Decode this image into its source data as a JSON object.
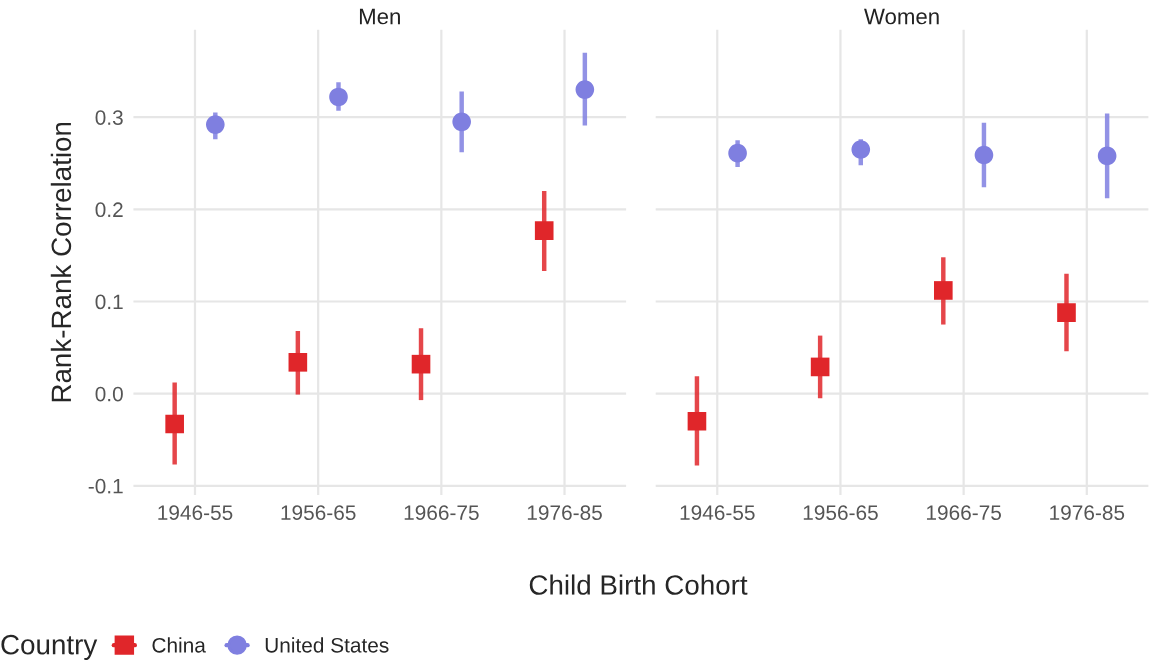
{
  "chart_data": [
    {
      "type": "scatter",
      "title": "Men",
      "ylabel": "Rank-Rank Correlation",
      "xlabel": "Child Birth Cohort",
      "legend_title": "Country",
      "legend": "bottom",
      "grid": true,
      "categories": [
        "1946-55",
        "1956-65",
        "1966-75",
        "1976-85"
      ],
      "ylim": [
        -0.11,
        0.395
      ],
      "yticks": [
        {
          "value": -0.1,
          "label": "-0.1"
        },
        {
          "value": 0.0,
          "label": "0.0"
        },
        0.1,
        0.2,
        0.3
      ],
      "series": [
        {
          "name": "China",
          "color": "#e0262a",
          "marker": "square",
          "values": [
            -0.033,
            0.034,
            0.032,
            0.177
          ],
          "errors": [
            [
              -0.077,
              0.012
            ],
            [
              -0.001,
              0.068
            ],
            [
              -0.007,
              0.071
            ],
            [
              0.133,
              0.22
            ]
          ]
        },
        {
          "name": "United States",
          "color": "#7f7fe0",
          "marker": "circle",
          "values": [
            0.292,
            0.322,
            0.295,
            0.33
          ],
          "errors": [
            [
              0.276,
              0.305
            ],
            [
              0.307,
              0.338
            ],
            [
              0.262,
              0.328
            ],
            [
              0.291,
              0.37
            ]
          ]
        }
      ]
    },
    {
      "type": "scatter",
      "title": "Women",
      "grid": true,
      "tick_labels": "x",
      "categories": [
        "1946-55",
        "1956-65",
        "1966-75",
        "1976-85"
      ],
      "ylim": [
        -0.11,
        0.395
      ],
      "series": [
        {
          "color": "#e0262a",
          "marker": "square",
          "values": [
            -0.03,
            0.029,
            0.112,
            0.088
          ],
          "errors": [
            [
              -0.078,
              0.019
            ],
            [
              -0.005,
              0.063
            ],
            [
              0.075,
              0.148
            ],
            [
              0.046,
              0.13
            ]
          ]
        },
        {
          "color": "#7f7fe0",
          "marker": "circle",
          "values": [
            0.261,
            0.265,
            0.259,
            0.258
          ],
          "errors": [
            [
              0.246,
              0.275
            ],
            [
              0.248,
              0.276
            ],
            [
              0.224,
              0.294
            ],
            [
              0.212,
              0.304
            ]
          ]
        }
      ]
    }
  ]
}
